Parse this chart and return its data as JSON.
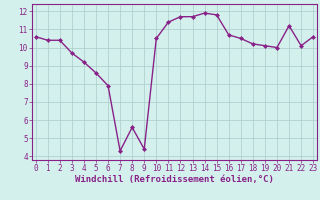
{
  "x": [
    0,
    1,
    2,
    3,
    4,
    5,
    6,
    7,
    8,
    9,
    10,
    11,
    12,
    13,
    14,
    15,
    16,
    17,
    18,
    19,
    20,
    21,
    22,
    23
  ],
  "y": [
    10.6,
    10.4,
    10.4,
    9.7,
    9.2,
    8.6,
    7.9,
    4.3,
    5.6,
    4.4,
    10.5,
    11.4,
    11.7,
    11.7,
    11.9,
    11.8,
    10.7,
    10.5,
    10.2,
    10.1,
    10.0,
    11.2,
    10.1,
    10.6
  ],
  "line_color": "#882288",
  "marker": "D",
  "markersize": 2,
  "linewidth": 1.0,
  "xlabel": "Windchill (Refroidissement éolien,°C)",
  "xlabel_fontsize": 6.5,
  "background_color": "#d4f0ec",
  "grid_color": "#aacccc",
  "tick_color": "#882288",
  "ylim": [
    3.8,
    12.4
  ],
  "yticks": [
    4,
    5,
    6,
    7,
    8,
    9,
    10,
    11,
    12
  ],
  "xticks": [
    0,
    1,
    2,
    3,
    4,
    5,
    6,
    7,
    8,
    9,
    10,
    11,
    12,
    13,
    14,
    15,
    16,
    17,
    18,
    19,
    20,
    21,
    22,
    23
  ],
  "tick_fontsize": 5.5,
  "spine_color": "#882288",
  "xlim": [
    -0.3,
    23.3
  ]
}
